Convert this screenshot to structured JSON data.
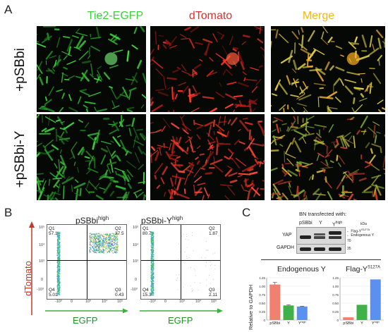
{
  "panel_a": {
    "letter": "A",
    "columns": [
      "Tie2-EGFP",
      "dTomato",
      "Merge"
    ],
    "rows": [
      "+pSBbi",
      "+pSBbi-Y"
    ]
  },
  "panel_b": {
    "letter": "B",
    "y_label": "dTomato",
    "x_label": "EGFP",
    "ticks_y": [
      "10⁵",
      "10⁴",
      "10³",
      "0",
      "-10³"
    ],
    "ticks_x": [
      "-10³",
      "0",
      "10³",
      "10⁴",
      "10⁵"
    ],
    "plots": [
      {
        "title": "pSBbi",
        "title_sup": "high",
        "q1": {
          "name": "Q1",
          "value": "57.1"
        },
        "q2": {
          "name": "Q2",
          "value": "37.5"
        },
        "q3": {
          "name": "Q3",
          "value": "0.43"
        },
        "q4": {
          "name": "Q4",
          "value": "5.01"
        }
      },
      {
        "title": "pSBbi-Y",
        "title_sup": "high",
        "q1": {
          "name": "Q1",
          "value": "80.7"
        },
        "q2": {
          "name": "Q2",
          "value": "1.87"
        },
        "q3": {
          "name": "Q3",
          "value": "2.11"
        },
        "q4": {
          "name": "Q4",
          "value": "15.3"
        }
      }
    ]
  },
  "panel_c": {
    "letter": "C",
    "blot_header": "BN transfected with:",
    "lanes": [
      "pSBbi",
      "Y",
      "Y"
    ],
    "lane_sup": "high",
    "rows": [
      "YAP",
      "GAPDH"
    ],
    "kda": "kDa",
    "markers": [
      "70",
      "35"
    ],
    "annotations": [
      "Flag-Y",
      "Endogenous Y"
    ],
    "annotation_sup": "S127A",
    "y_axis_label": "Relative to GAPDH",
    "chart_data": [
      {
        "type": "bar",
        "title": "Endogenous Y",
        "categories": [
          "pSBbi",
          "Y",
          "Y"
        ],
        "category_sup": [
          "",
          "",
          "high"
        ],
        "values": [
          1.05,
          0.43,
          0.4
        ],
        "errors": [
          0.06,
          0.02,
          0.01
        ],
        "ylim": [
          0,
          1.25
        ],
        "yticks": [
          "0",
          "0.25",
          "0.50",
          "0.75",
          "1.00",
          "1.25"
        ],
        "colors": [
          "#f08070",
          "#3fb04a",
          "#5b8ff0"
        ]
      },
      {
        "type": "bar",
        "title": "Flag-Y",
        "title_sup": "S127A",
        "categories": [
          "pSBbi",
          "Y",
          "Y"
        ],
        "category_sup": [
          "",
          "",
          "high"
        ],
        "values": [
          0.08,
          0.45,
          1.2
        ],
        "errors": [
          0,
          0,
          0
        ],
        "ylim": [
          0,
          1.25
        ],
        "yticks": [
          "0",
          "0.25",
          "0.50",
          "0.75",
          "1.00",
          "1.25"
        ],
        "colors": [
          "#f08070",
          "#3fb04a",
          "#5b8ff0"
        ]
      }
    ]
  }
}
